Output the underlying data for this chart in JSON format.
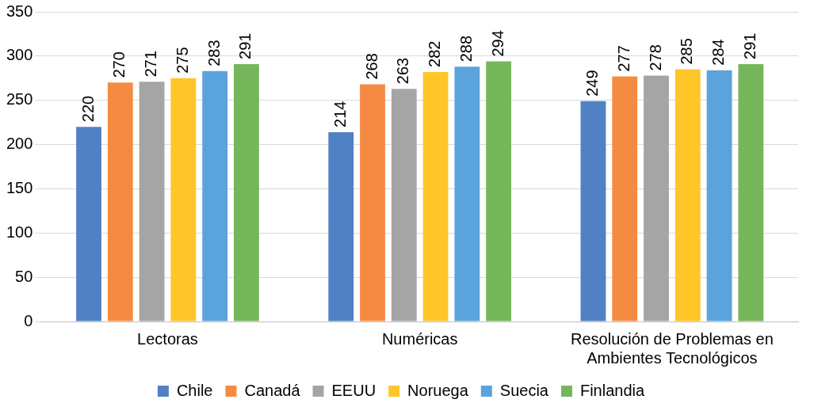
{
  "chart_data": {
    "type": "bar",
    "categories": [
      "Lectoras",
      "Numéricas",
      "Resolución de Problemas en Ambientes Tecnológicos"
    ],
    "series": [
      {
        "name": "Chile",
        "color": "#4f81c4",
        "values": [
          220,
          214,
          249
        ]
      },
      {
        "name": "Canadá",
        "color": "#f58b42",
        "values": [
          270,
          268,
          277
        ]
      },
      {
        "name": "EEUU",
        "color": "#a5a5a5",
        "values": [
          271,
          263,
          278
        ]
      },
      {
        "name": "Noruega",
        "color": "#ffc62a",
        "values": [
          275,
          282,
          285
        ]
      },
      {
        "name": "Suecia",
        "color": "#5ba3dc",
        "values": [
          283,
          288,
          284
        ]
      },
      {
        "name": "Finlandia",
        "color": "#76b65a",
        "values": [
          291,
          294,
          291
        ]
      }
    ],
    "ylim": [
      0,
      350
    ],
    "yticks": [
      0,
      50,
      100,
      150,
      200,
      250,
      300,
      350
    ],
    "grid": "y",
    "legend": "bottom",
    "data_labels": true
  }
}
